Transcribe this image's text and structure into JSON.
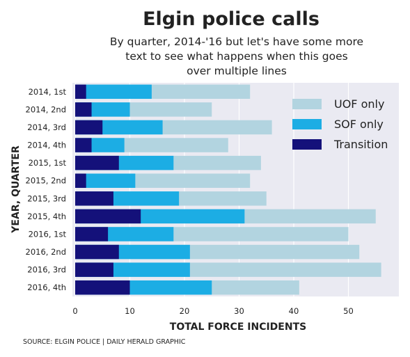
{
  "chart_data": {
    "type": "bar",
    "orientation": "horizontal",
    "stacked": true,
    "title": "Elgin police calls",
    "subtitle_lines": [
      "By quarter, 2014-'16 but let's have some more",
      "text to see what happens when this goes",
      "over multiple lines"
    ],
    "xlabel": "TOTAL FORCE INCIDENTS",
    "ylabel": "YEAR, QUARTER",
    "categories": [
      "2014, 1st",
      "2014, 2nd",
      "2014, 3rd",
      "2014, 4th",
      "2015, 1st",
      "2015, 2nd",
      "2015, 3rd",
      "2015, 4th",
      "2016, 1st",
      "2016, 2nd",
      "2016, 3rd",
      "2016, 4th"
    ],
    "series": [
      {
        "name": "UOF only",
        "color": "#b2d4e0",
        "cumulative": [
          32,
          25,
          36,
          28,
          34,
          32,
          35,
          55,
          50,
          52,
          56,
          41
        ]
      },
      {
        "name": "SOF only",
        "color": "#1cade4",
        "cumulative": [
          14,
          10,
          16,
          9,
          18,
          11,
          19,
          31,
          18,
          21,
          21,
          25
        ]
      },
      {
        "name": "Transition",
        "color": "#14117a",
        "cumulative": [
          2,
          3,
          5,
          3,
          8,
          2,
          7,
          12,
          6,
          8,
          7,
          10
        ]
      }
    ],
    "xticks": [
      "0",
      "10",
      "20",
      "30",
      "40",
      "50"
    ],
    "xlim": [
      0,
      59
    ],
    "grid": true,
    "legend_position": "top-right",
    "background": "#eaeaf2",
    "source": "SOURCE: ELGIN POLICE | DAILY HERALD GRAPHIC"
  }
}
